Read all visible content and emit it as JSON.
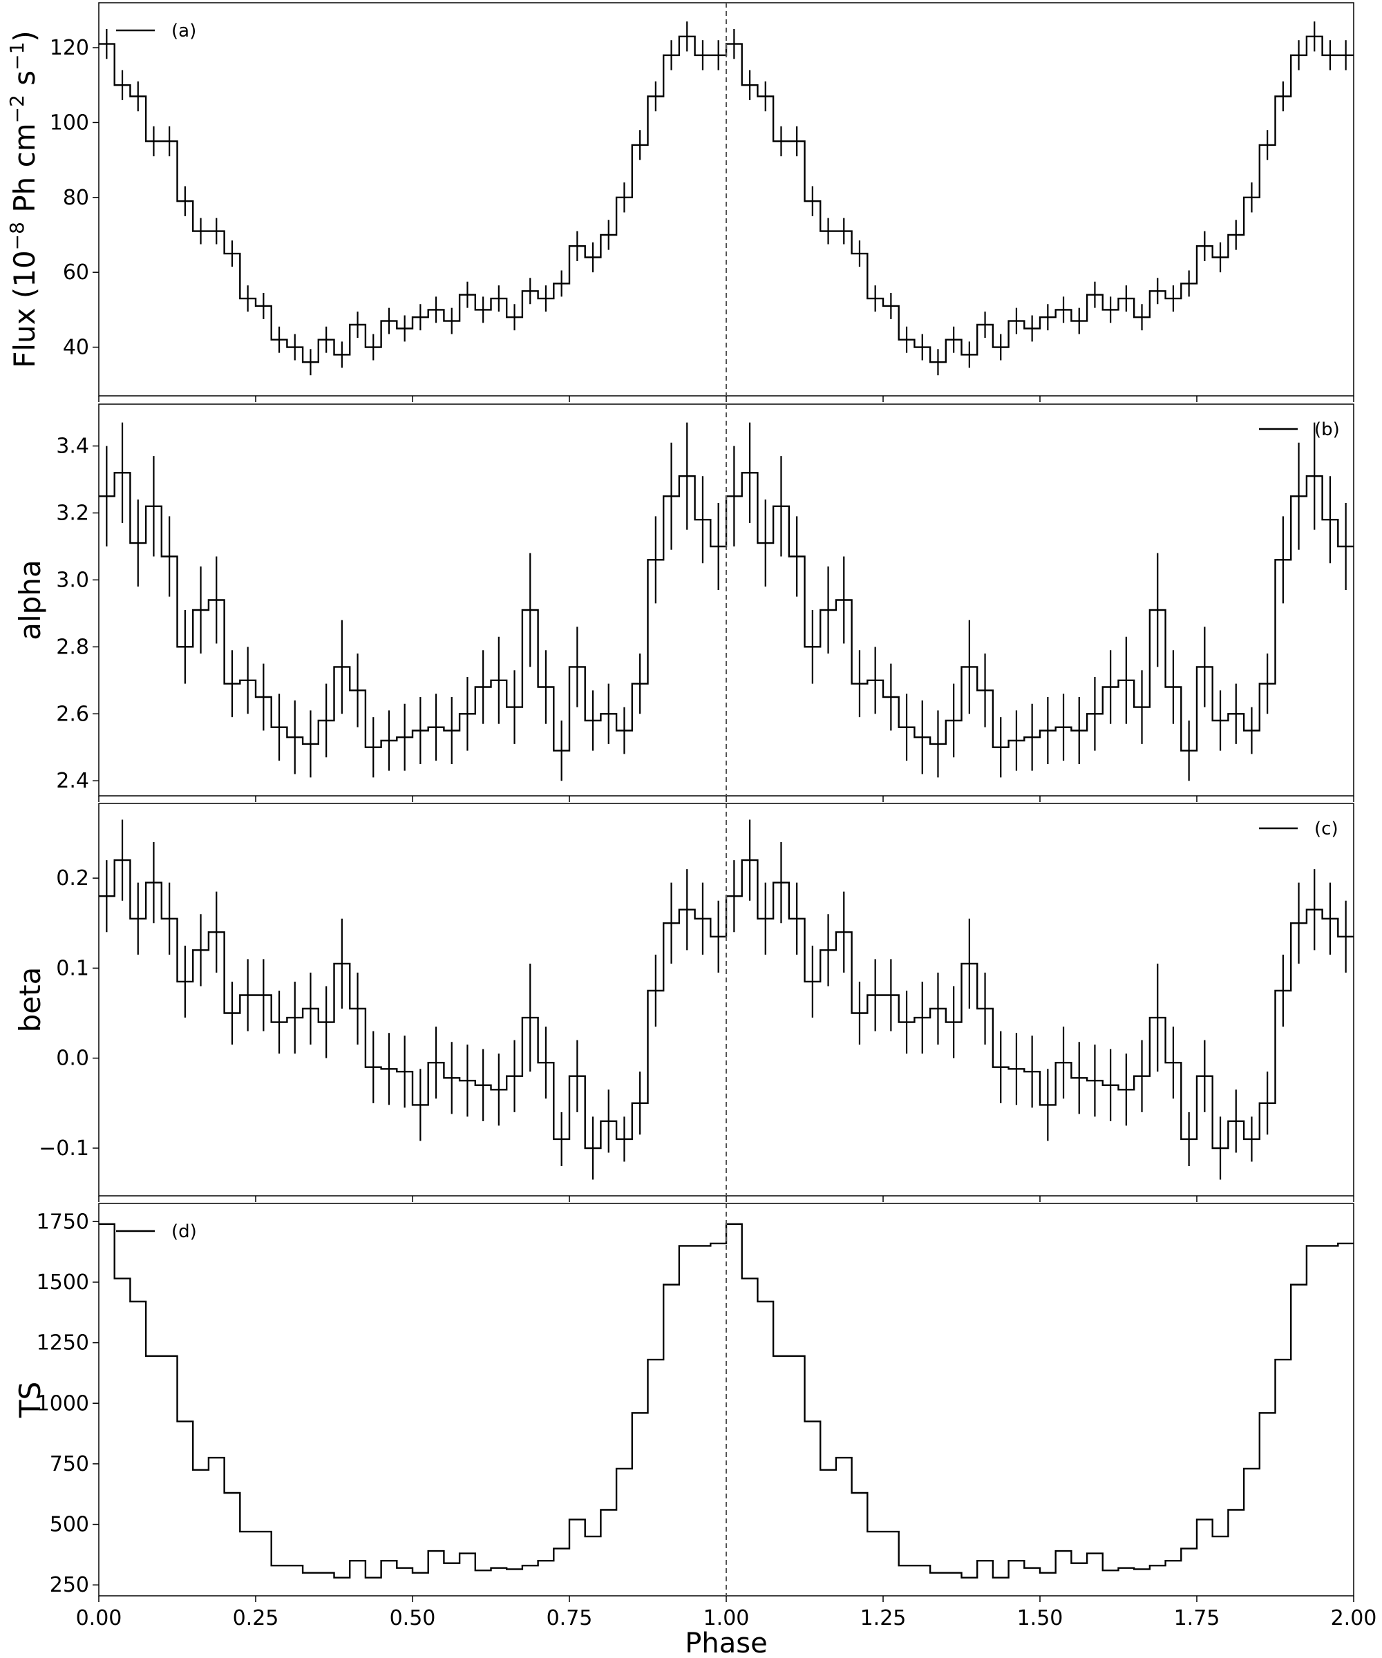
{
  "chart_data": {
    "type": "line",
    "x_label": "Phase",
    "x_ticks": [
      "0.00",
      "0.25",
      "0.50",
      "0.75",
      "1.00",
      "1.25",
      "1.50",
      "1.75",
      "2.00"
    ],
    "x_range": [
      0,
      2
    ],
    "marker_line_x": 1.0,
    "bin_width": 0.025,
    "bins_per_cycle": 40,
    "panels": [
      {
        "name": "flux",
        "legend_label": "(a)",
        "legend_position": "upper-left",
        "y_label_main": "Flux (10",
        "y_label_exp1": "−8",
        "y_label_mid": " Ph cm",
        "y_label_exp2": "−2",
        "y_label_mid2": " s",
        "y_label_exp3": "−1",
        "y_label_end": ")",
        "y_range": [
          27,
          132
        ],
        "y_ticks": [
          40,
          60,
          80,
          100,
          120
        ],
        "y_tick_labels": [
          "40",
          "60",
          "80",
          "100",
          "120"
        ],
        "values": [
          121,
          110,
          107,
          95,
          95,
          79,
          71,
          71,
          65,
          53,
          51,
          42,
          40,
          36,
          42,
          38,
          46,
          40,
          47,
          45,
          48,
          50,
          47,
          54,
          50,
          53,
          48,
          55,
          53,
          57,
          67,
          64,
          70,
          80,
          94,
          107,
          118,
          123,
          118,
          118
        ],
        "errors": [
          4,
          4,
          4,
          4,
          4,
          4,
          3.5,
          3.5,
          3.5,
          3.5,
          3.5,
          3.5,
          3.5,
          3.5,
          3.5,
          3.5,
          3.5,
          3.5,
          3.5,
          3.5,
          3.5,
          3.5,
          3.5,
          3.5,
          3.5,
          3.5,
          3.5,
          3.5,
          3.5,
          3.5,
          4,
          4,
          4,
          4,
          4,
          4,
          4,
          4,
          4,
          4
        ]
      },
      {
        "name": "alpha",
        "legend_label": "(b)",
        "legend_position": "upper-right",
        "y_label_main": "alpha",
        "y_range": [
          2.355,
          3.525
        ],
        "y_ticks": [
          2.4,
          2.6,
          2.8,
          3.0,
          3.2,
          3.4
        ],
        "y_tick_labels": [
          "2.4",
          "2.6",
          "2.8",
          "3.0",
          "3.2",
          "3.4"
        ],
        "values": [
          3.25,
          3.32,
          3.11,
          3.22,
          3.07,
          2.8,
          2.91,
          2.94,
          2.69,
          2.7,
          2.65,
          2.56,
          2.53,
          2.51,
          2.58,
          2.74,
          2.67,
          2.5,
          2.52,
          2.53,
          2.55,
          2.56,
          2.55,
          2.6,
          2.68,
          2.7,
          2.62,
          2.91,
          2.68,
          2.49,
          2.74,
          2.58,
          2.6,
          2.55,
          2.69,
          3.06,
          3.25,
          3.31,
          3.18,
          3.1
        ],
        "errors": [
          0.15,
          0.15,
          0.13,
          0.15,
          0.12,
          0.11,
          0.13,
          0.13,
          0.1,
          0.1,
          0.1,
          0.1,
          0.11,
          0.1,
          0.11,
          0.14,
          0.11,
          0.09,
          0.09,
          0.1,
          0.1,
          0.1,
          0.1,
          0.11,
          0.11,
          0.13,
          0.11,
          0.17,
          0.11,
          0.09,
          0.12,
          0.09,
          0.09,
          0.07,
          0.09,
          0.13,
          0.16,
          0.16,
          0.13,
          0.13
        ]
      },
      {
        "name": "beta",
        "legend_label": "(c)",
        "legend_position": "upper-right",
        "y_label_main": "beta",
        "y_range": [
          -0.153,
          0.283
        ],
        "y_ticks": [
          -0.1,
          0.0,
          0.1,
          0.2
        ],
        "y_tick_labels": [
          "−0.1",
          "0.0",
          "0.1",
          "0.2"
        ],
        "values": [
          0.18,
          0.22,
          0.155,
          0.195,
          0.155,
          0.085,
          0.12,
          0.14,
          0.05,
          0.07,
          0.07,
          0.04,
          0.045,
          0.055,
          0.04,
          0.105,
          0.055,
          -0.01,
          -0.012,
          -0.015,
          -0.052,
          -0.005,
          -0.022,
          -0.025,
          -0.03,
          -0.035,
          -0.02,
          0.045,
          -0.005,
          -0.09,
          -0.02,
          -0.1,
          -0.07,
          -0.09,
          -0.05,
          0.075,
          0.15,
          0.165,
          0.155,
          0.135
        ],
        "errors": [
          0.04,
          0.045,
          0.04,
          0.045,
          0.04,
          0.04,
          0.04,
          0.045,
          0.035,
          0.04,
          0.04,
          0.035,
          0.04,
          0.04,
          0.04,
          0.05,
          0.04,
          0.04,
          0.04,
          0.04,
          0.04,
          0.04,
          0.04,
          0.04,
          0.04,
          0.04,
          0.04,
          0.06,
          0.04,
          0.03,
          0.04,
          0.035,
          0.035,
          0.025,
          0.035,
          0.04,
          0.045,
          0.045,
          0.04,
          0.04
        ]
      },
      {
        "name": "ts",
        "legend_label": "(d)",
        "legend_position": "upper-left",
        "y_label_main": "TS",
        "y_range": [
          205,
          1825
        ],
        "y_ticks": [
          250,
          500,
          750,
          1000,
          1250,
          1500,
          1750
        ],
        "y_tick_labels": [
          "250",
          "500",
          "750",
          "1000",
          "1250",
          "1500",
          "1750"
        ],
        "values": [
          1740,
          1515,
          1420,
          1195,
          1195,
          925,
          725,
          775,
          630,
          470,
          470,
          330,
          330,
          300,
          300,
          280,
          350,
          280,
          350,
          320,
          300,
          390,
          340,
          380,
          310,
          320,
          315,
          330,
          350,
          400,
          520,
          450,
          560,
          730,
          960,
          1180,
          1490,
          1650,
          1650,
          1660
        ],
        "errors": []
      }
    ]
  }
}
